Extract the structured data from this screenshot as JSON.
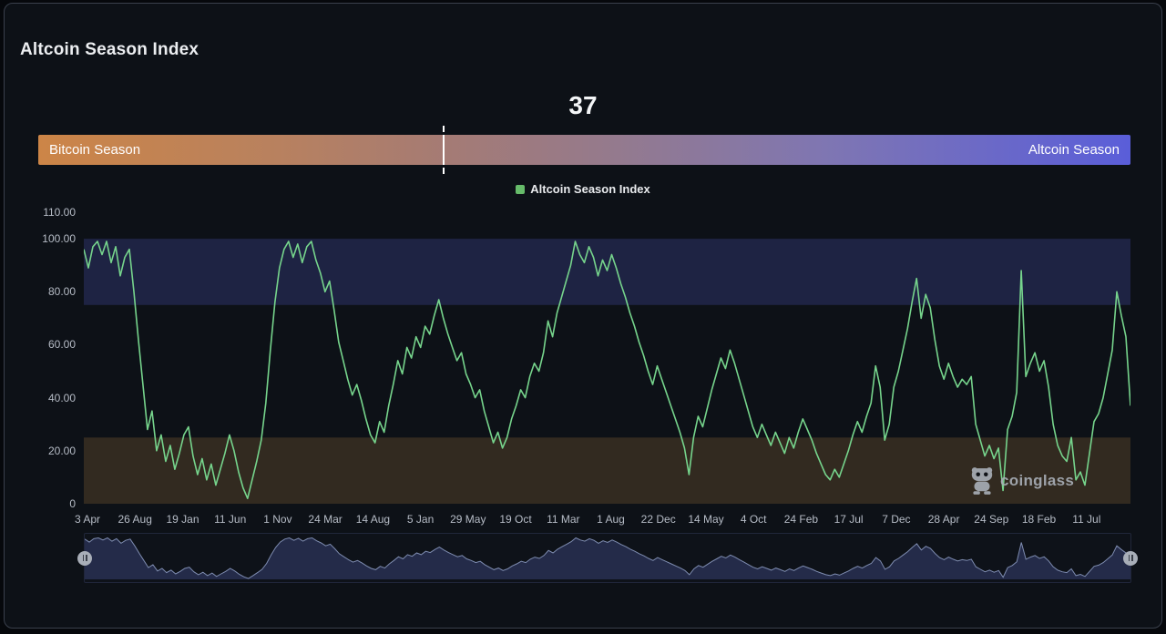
{
  "header": {
    "title": "Altcoin Season Index"
  },
  "gauge": {
    "current_value": "37",
    "left_label": "Bitcoin Season",
    "right_label": "Altcoin Season",
    "marker_percent": 37.1,
    "colors": {
      "left_end": "#cc8547",
      "right_end": "#5a5ed9",
      "marker": "#ffffff"
    }
  },
  "legend": {
    "label": "Altcoin Season Index",
    "swatch_color": "#66bb6a"
  },
  "watermark": {
    "label": "coinglass",
    "icon": "coinglass-mascot",
    "color": "#a7adb5"
  },
  "chart_data": {
    "type": "line",
    "title": "Altcoin Season Index",
    "xlabel": "",
    "ylabel": "",
    "ylim": [
      0,
      110
    ],
    "grid": false,
    "legend_position": "top-center",
    "series": [
      {
        "name": "Altcoin Season Index",
        "color": "#76d48c",
        "values": [
          96,
          89,
          97,
          99,
          94,
          99,
          91,
          97,
          86,
          93,
          96,
          80,
          62,
          45,
          28,
          35,
          20,
          26,
          16,
          22,
          13,
          19,
          26,
          29,
          18,
          11,
          17,
          9,
          15,
          7,
          13,
          19,
          26,
          20,
          12,
          6,
          2,
          9,
          16,
          24,
          38,
          58,
          76,
          89,
          96,
          99,
          93,
          98,
          91,
          97,
          99,
          92,
          87,
          80,
          84,
          73,
          61,
          54,
          47,
          41,
          45,
          39,
          32,
          26,
          23,
          31,
          27,
          37,
          45,
          54,
          49,
          59,
          55,
          63,
          59,
          67,
          64,
          71,
          77,
          70,
          64,
          59,
          54,
          57,
          49,
          45,
          40,
          43,
          35,
          29,
          23,
          27,
          21,
          25,
          32,
          37,
          43,
          40,
          48,
          53,
          50,
          57,
          69,
          63,
          72,
          78,
          84,
          90,
          99,
          94,
          91,
          97,
          93,
          86,
          92,
          88,
          94,
          89,
          83,
          78,
          72,
          67,
          61,
          56,
          50,
          45,
          52,
          47,
          42,
          37,
          32,
          27,
          21,
          11,
          25,
          33,
          29,
          36,
          43,
          49,
          55,
          51,
          58,
          53,
          47,
          41,
          35,
          29,
          25,
          30,
          26,
          22,
          27,
          23,
          19,
          25,
          21,
          27,
          32,
          28,
          24,
          19,
          15,
          11,
          9,
          13,
          10,
          15,
          20,
          26,
          31,
          27,
          33,
          38,
          52,
          44,
          24,
          30,
          44,
          50,
          58,
          66,
          76,
          85,
          70,
          79,
          74,
          62,
          52,
          47,
          53,
          48,
          44,
          47,
          45,
          48,
          30,
          24,
          18,
          22,
          17,
          21,
          5,
          28,
          33,
          42,
          88,
          48,
          53,
          57,
          50,
          54,
          44,
          30,
          22,
          18,
          16,
          25,
          9,
          12,
          7,
          19,
          31,
          34,
          40,
          49,
          58,
          80,
          71,
          63,
          37
        ]
      }
    ],
    "y_tick_labels": [
      "110.00",
      "100.00",
      "80.00",
      "60.00",
      "40.00",
      "20.00",
      "0"
    ],
    "y_tick_values": [
      110,
      100,
      80,
      60,
      40,
      20,
      0
    ],
    "x_tick_labels": [
      "3 Apr",
      "26 Aug",
      "19 Jan",
      "11 Jun",
      "1 Nov",
      "24 Mar",
      "14 Aug",
      "5 Jan",
      "29 May",
      "19 Oct",
      "11 Mar",
      "1 Aug",
      "22 Dec",
      "14 May",
      "4 Oct",
      "24 Feb",
      "17 Jul",
      "7 Dec",
      "28 Apr",
      "24 Sep",
      "18 Feb",
      "11 Jul"
    ],
    "bands": [
      {
        "name": "altcoin-season-zone",
        "from": 75,
        "to": 100,
        "color": "#1e2343"
      },
      {
        "name": "bitcoin-season-zone",
        "from": 0,
        "to": 25,
        "color": "#322a20"
      }
    ],
    "navigator": {
      "fill": "#242b49",
      "stroke": "#7e8cb0"
    }
  }
}
